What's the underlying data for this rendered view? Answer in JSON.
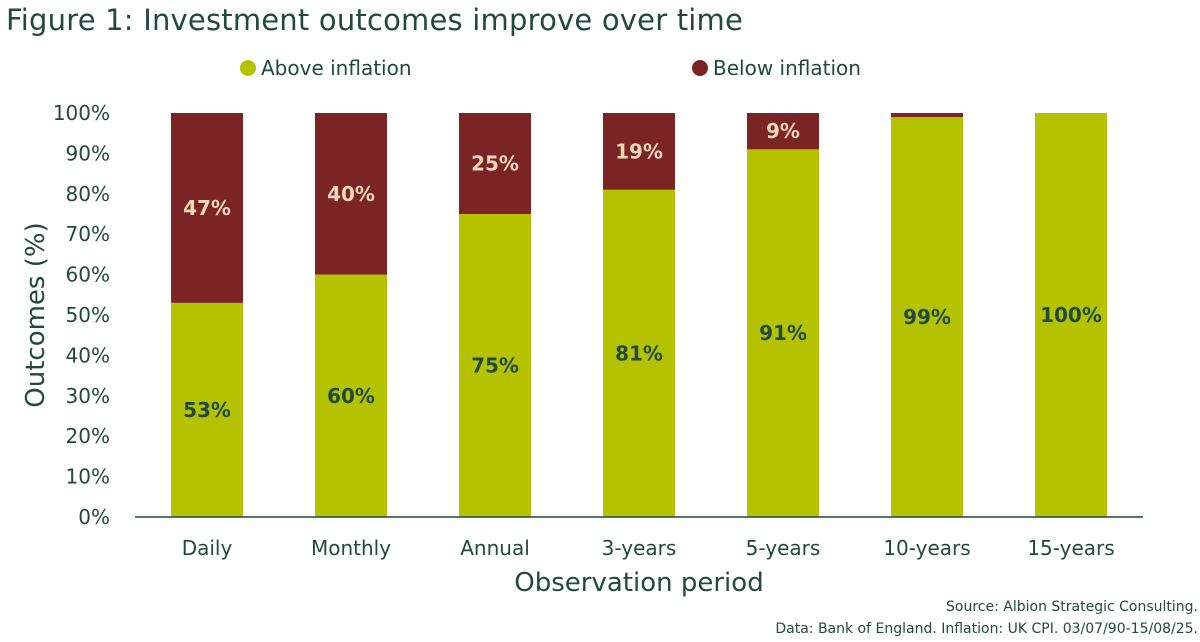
{
  "title": "Figure 1: Investment outcomes improve over time",
  "source_line": "Source: Albion Strategic Consulting.",
  "data_line": "Data: Bank of England. Inflation: UK CPI. 03/07/90-15/08/25.",
  "chart_data": {
    "type": "bar",
    "stacked": true,
    "categories": [
      "Daily",
      "Monthly",
      "Annual",
      "3-years",
      "5-years",
      "10-years",
      "15-years"
    ],
    "series": [
      {
        "name": "Above inflation",
        "color": "#b5c200",
        "label_color": "#1f4a3d",
        "values": [
          53,
          60,
          75,
          81,
          91,
          99,
          100
        ],
        "labels": [
          "53%",
          "60%",
          "75%",
          "81%",
          "91%",
          "99%",
          "100%"
        ]
      },
      {
        "name": "Below inflation",
        "color": "#7a2426",
        "label_color": "#f4d7b6",
        "values": [
          47,
          40,
          25,
          19,
          9,
          1,
          0
        ],
        "labels": [
          "47%",
          "40%",
          "25%",
          "19%",
          "9%",
          "",
          ""
        ]
      }
    ],
    "xlabel": "Observation period",
    "ylabel": "Outcomes (%)",
    "ylim": [
      0,
      100
    ],
    "yticks": [
      "0%",
      "10%",
      "20%",
      "30%",
      "40%",
      "50%",
      "60%",
      "70%",
      "80%",
      "90%",
      "100%"
    ],
    "grid": false,
    "legend_position": "top"
  }
}
